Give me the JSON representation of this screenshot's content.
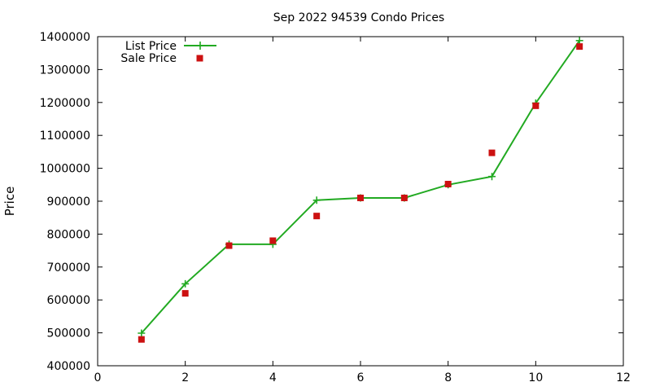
{
  "chart_data": {
    "type": "line",
    "title": "Sep 2022 94539 Condo Prices",
    "xlabel": "",
    "ylabel": "Price",
    "xlim": [
      0,
      12
    ],
    "ylim": [
      400000,
      1400000
    ],
    "xticks": [
      "0",
      "2",
      "4",
      "6",
      "8",
      "10",
      "12"
    ],
    "yticks": [
      "400000",
      "500000",
      "600000",
      "700000",
      "800000",
      "900000",
      "1000000",
      "1100000",
      "1200000",
      "1300000",
      "1400000"
    ],
    "grid": false,
    "legend_position": "top-left",
    "series": [
      {
        "name": "List Price",
        "style": "line-with-plus-markers",
        "color": "#22aa22",
        "x": [
          1,
          2,
          3,
          4,
          5,
          6,
          7,
          8,
          9,
          10,
          11
        ],
        "y": [
          499000,
          649000,
          769000,
          769000,
          903000,
          910000,
          910000,
          950000,
          975000,
          1198000,
          1388000
        ]
      },
      {
        "name": "Sale Price",
        "style": "square-markers",
        "color": "#cc1111",
        "x": [
          1,
          2,
          3,
          4,
          5,
          6,
          7,
          8,
          9,
          10,
          11
        ],
        "y": [
          480000,
          620000,
          765000,
          780000,
          855000,
          910000,
          910000,
          952000,
          1047000,
          1190000,
          1370000
        ]
      }
    ]
  }
}
